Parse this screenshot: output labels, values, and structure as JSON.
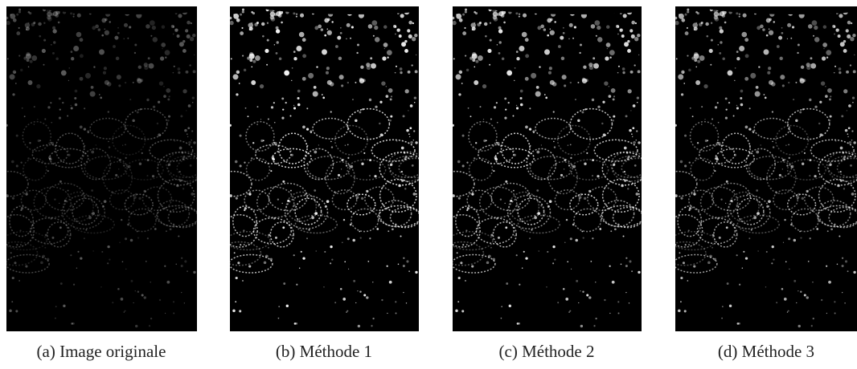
{
  "figure": {
    "panels": [
      {
        "caption": "(a) Image originale"
      },
      {
        "caption": "(b) Méthode 1"
      },
      {
        "caption": "(c) Méthode 2"
      },
      {
        "caption": "(d) Méthode 3"
      }
    ]
  }
}
